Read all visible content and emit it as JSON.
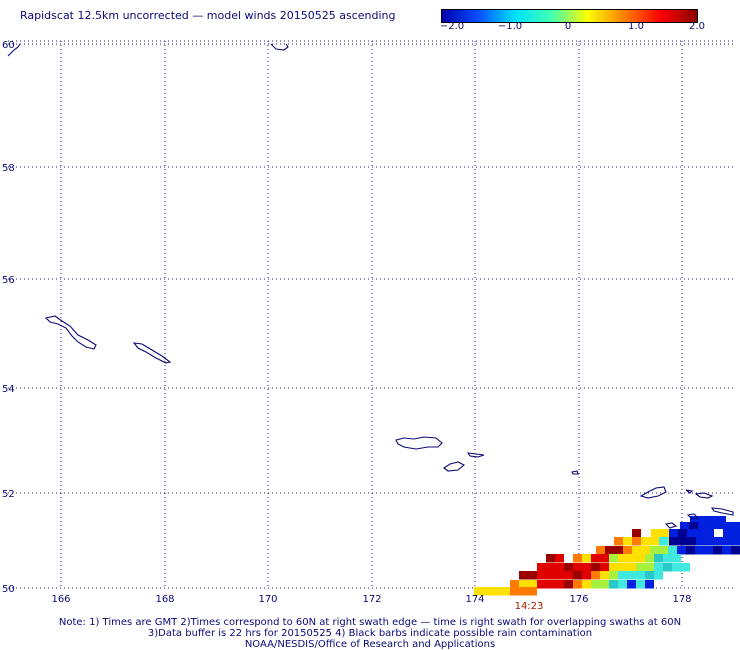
{
  "title": "Rapidscat 12.5km uncorrected — model winds 20150525 ascending",
  "colorbar": {
    "labels": [
      "−2.0",
      "−1.0",
      "0",
      "1.0",
      "2.0"
    ],
    "stops": [
      "#0000aa",
      "#0050ff",
      "#00e0ff",
      "#40ffb0",
      "#ffff00",
      "#ff8000",
      "#ff0000",
      "#8a0000"
    ]
  },
  "map": {
    "lon_labels": [
      "166",
      "168",
      "170",
      "172",
      "174",
      "176",
      "178"
    ],
    "lat_labels": [
      "60",
      "58",
      "56",
      "54",
      "52",
      "50"
    ],
    "time_label": "14:23",
    "grid_color": "#1a1a8c",
    "coast_color": "#0a0a78",
    "time_color": "#a02000"
  },
  "notes": {
    "line1": "Note: 1) Times are GMT 2)Times correspond to 60N at right swath edge — time is right swath for overlapping swaths at 60N",
    "line2": "3)Data buffer is 22 hrs for 20150525 4) Black barbs indicate possible rain contamination",
    "line3": "NOAA/NESDIS/Office of Research and Applications"
  }
}
